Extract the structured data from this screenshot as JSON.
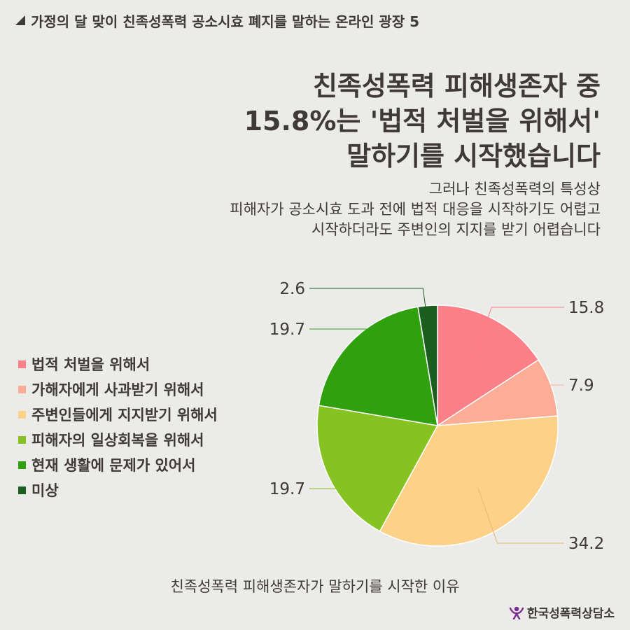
{
  "header": {
    "series_title": "가정의 달 맞이 친족성폭력 공소시효 폐지를 말하는 온라인 광장 5"
  },
  "headline": {
    "lines": [
      "친족성폭력 피해생존자 중",
      "15.8%는 '법적 처벌을 위해서'",
      "말하기를 시작했습니다"
    ]
  },
  "subtitle": {
    "lines": [
      "그러나 친족성폭력의 특성상",
      "피해자가 공소시효 도과 전에 법적 대응을 시작하기도 어렵고",
      "시작하더라도 주변인의 지지를 받기 어렵습니다"
    ]
  },
  "chart_data": {
    "type": "pie",
    "title": "친족성폭력 피해생존자가 말하기를 시작한 이유",
    "start_angle_deg": 0,
    "direction": "clockwise",
    "slices": [
      {
        "label": "법적 처벌을 위해서",
        "value": 15.8,
        "display": "15.8",
        "color": "#fd7f87"
      },
      {
        "label": "가해자에게 사과받기 위해서",
        "value": 7.9,
        "display": "7.9",
        "color": "#fdac95"
      },
      {
        "label": "주변인들에게 지지받기 위해서",
        "value": 34.2,
        "display": "34.2",
        "color": "#fdd288"
      },
      {
        "label": "피해자의 일상회복을 위해서",
        "value": 19.7,
        "display": "19.7",
        "color": "#86c322"
      },
      {
        "label": "현재 생활에 문제가 있어서",
        "value": 19.7,
        "display": "19.7",
        "color": "#30a00f"
      },
      {
        "label": "미상",
        "value": 2.6,
        "display": "2.6",
        "color": "#1b5e1f"
      }
    ],
    "legend_position": "left"
  },
  "footer": {
    "caption": "친족성폭력 피해생존자가 말하기를 시작한 이유",
    "org": "한국성폭력상담소"
  }
}
